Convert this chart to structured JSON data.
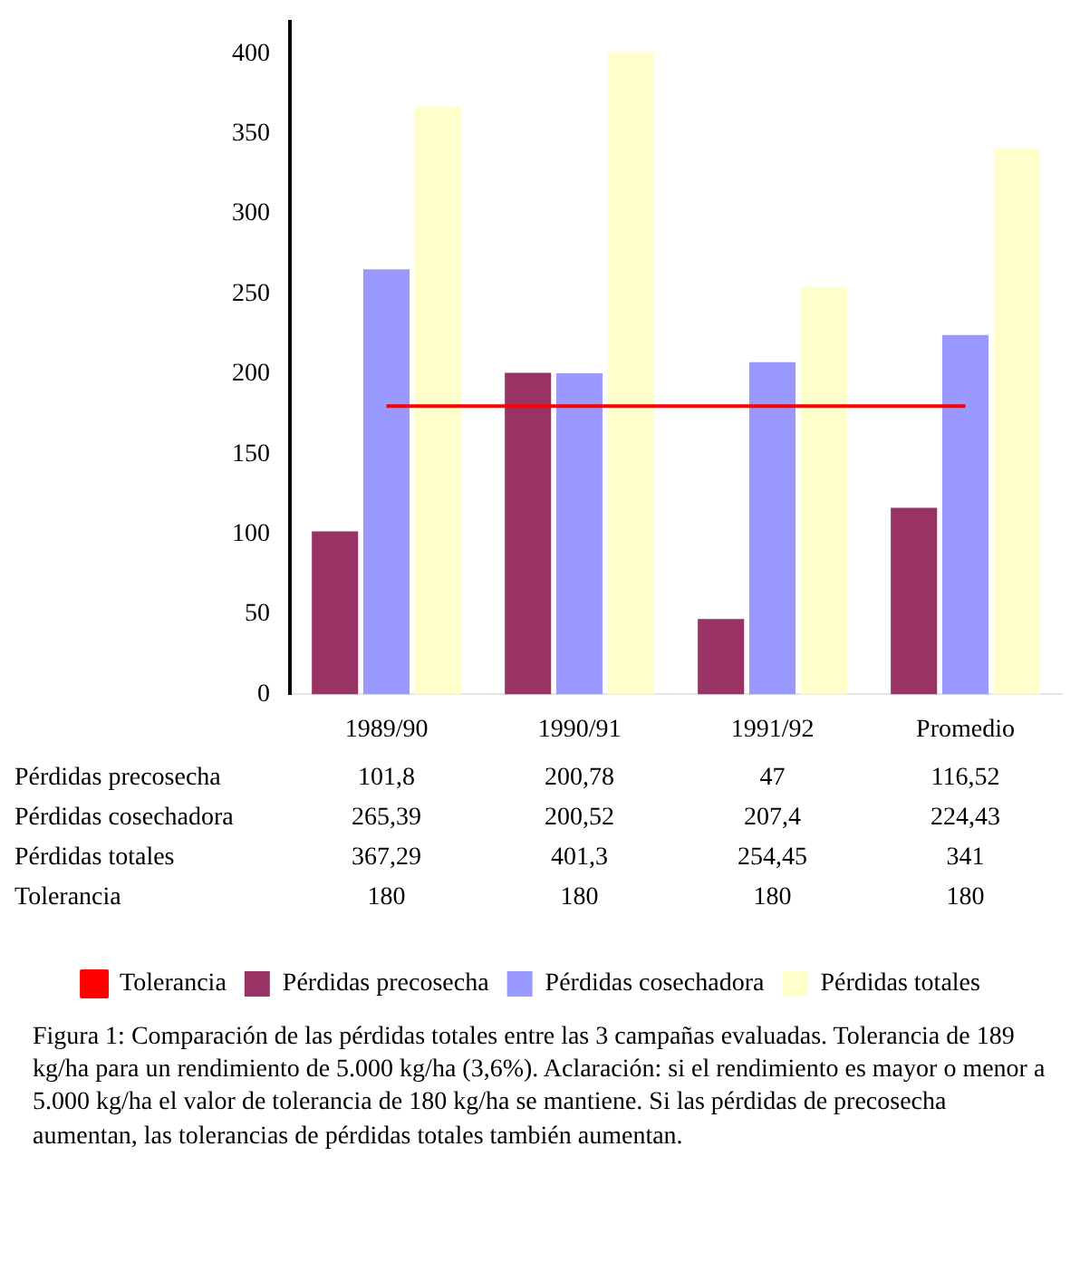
{
  "chart_data": {
    "type": "bar",
    "categories": [
      "1989/90",
      "1990/91",
      "1991/92",
      "Promedio"
    ],
    "series": [
      {
        "name": "Pérdidas precosecha",
        "color": "#993366",
        "values": [
          101.8,
          200.78,
          47,
          116.52
        ],
        "value_labels": [
          "101,8",
          "200,78",
          "47",
          "116,52"
        ]
      },
      {
        "name": "Pérdidas cosechadora",
        "color": "#9999ff",
        "values": [
          265.39,
          200.52,
          207.4,
          224.43
        ],
        "value_labels": [
          "265,39",
          "200,52",
          "207,4",
          "224,43"
        ]
      },
      {
        "name": "Pérdidas totales",
        "color": "#ffffcc",
        "values": [
          367.29,
          401.3,
          254.45,
          341
        ],
        "value_labels": [
          "367,29",
          "401,3",
          "254,45",
          "341"
        ]
      },
      {
        "name": "Tolerancia",
        "type": "line",
        "color": "#ff0000",
        "marker": "none",
        "values": [
          180,
          180,
          180,
          180
        ],
        "value_labels": [
          "180",
          "180",
          "180",
          "180"
        ]
      }
    ],
    "ylim": [
      0,
      420
    ],
    "yticks": [
      0,
      50,
      100,
      150,
      200,
      250,
      300,
      350,
      400
    ],
    "grid": false,
    "legend": "bottom",
    "annotations": [
      "Figura 1: Comparación de las pérdidas totales entre las 3 campañas evaluadas. Tolerancia de 189 kg/ha para un rendimiento de 5.000 kg/ha (3,6%). Aclaración: si el rendimiento es mayor o menor a 5.000 kg/ha el valor de tolerancia de 180 kg/ha se mantiene. Si las pérdidas de precosecha aumentan, las tolerancias de pérdidas totales también aumentan."
    ]
  }
}
